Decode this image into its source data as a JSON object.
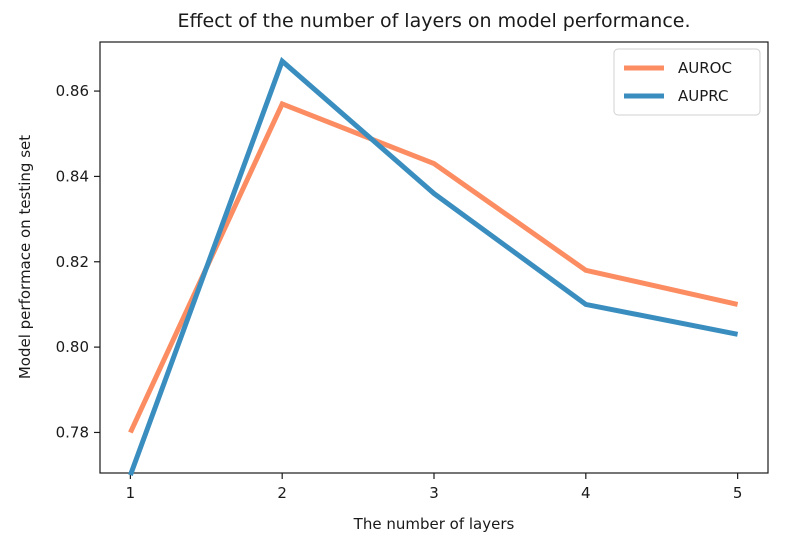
{
  "chart_data": {
    "type": "line",
    "title": "Effect of the number of layers on model performance.",
    "xlabel": "The number of layers",
    "ylabel": "Model performace on testing set",
    "x": [
      1,
      2,
      3,
      4,
      5
    ],
    "xlim": [
      0.8,
      5.2
    ],
    "ylim": [
      0.7705,
      0.8715
    ],
    "x_ticks": [
      1,
      2,
      3,
      4,
      5
    ],
    "y_ticks": [
      0.78,
      0.8,
      0.82,
      0.84,
      0.86
    ],
    "x_tick_labels": [
      "1",
      "2",
      "3",
      "4",
      "5"
    ],
    "y_tick_labels": [
      "0.78",
      "0.80",
      "0.82",
      "0.84",
      "0.86"
    ],
    "grid": false,
    "legend_position": "top-right",
    "series": [
      {
        "name": "AUROC",
        "color": "#fc8d62",
        "values": [
          0.78,
          0.857,
          0.843,
          0.818,
          0.81
        ]
      },
      {
        "name": "AUPRC",
        "color": "#3a8ebf",
        "values": [
          0.77,
          0.867,
          0.836,
          0.81,
          0.803
        ]
      }
    ]
  }
}
